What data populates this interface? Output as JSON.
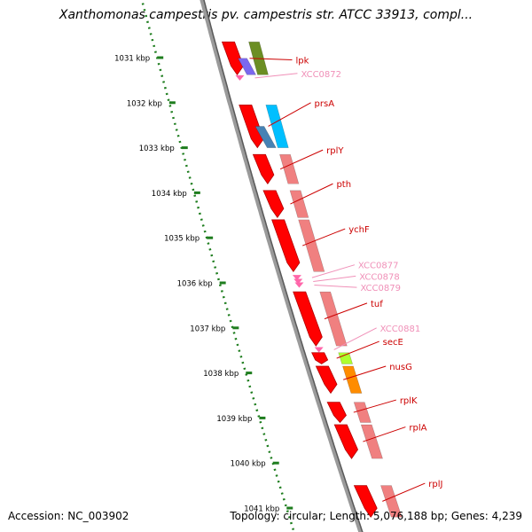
{
  "title": "Xanthomonas campestris pv. campestris str. ATCC 33913, compl...",
  "footer": {
    "accession": "Accession: NC_003902",
    "summary": "Topology: circular; Length: 5,076,188 bp; Genes: 4,239"
  },
  "ruler": {
    "unit_suffix": " kbp",
    "ticks": [
      {
        "kbp": 1031,
        "label": "1031 kbp"
      },
      {
        "kbp": 1032,
        "label": "1032 kbp"
      },
      {
        "kbp": 1033,
        "label": "1033 kbp"
      },
      {
        "kbp": 1034,
        "label": "1034 kbp"
      },
      {
        "kbp": 1035,
        "label": "1035 kbp"
      },
      {
        "kbp": 1036,
        "label": "1036 kbp"
      },
      {
        "kbp": 1037,
        "label": "1037 kbp"
      },
      {
        "kbp": 1038,
        "label": "1038 kbp"
      },
      {
        "kbp": 1039,
        "label": "1039 kbp"
      },
      {
        "kbp": 1040,
        "label": "1040 kbp"
      },
      {
        "kbp": 1041,
        "label": "1041 kbp"
      }
    ]
  },
  "colors": {
    "ruler": "#1e7d1e",
    "backbone": "#8a8a8a",
    "cds": "#ff0000",
    "cds_dark": "#b00000",
    "rna": "#ff8080",
    "named_label": "#cc0000",
    "locus_label": "#f090b8"
  },
  "genes": [
    {
      "name": "lpk",
      "start": 1030.65,
      "end": 1031.38,
      "color": "#cc0000",
      "cog_color": "#6b8e23",
      "cog2": "#7b68ee",
      "label_kbp": 1031.05,
      "style": "named"
    },
    {
      "name": "XCC0872",
      "start": 1031.42,
      "end": 1031.48,
      "label_kbp": 1031.35,
      "style": "locus"
    },
    {
      "name": "prsA",
      "start": 1032.05,
      "end": 1033.0,
      "cog_color": "#00bfff",
      "cog2": "#4682b4",
      "label_kbp": 1032.0,
      "style": "named"
    },
    {
      "name": "rplY",
      "start": 1033.15,
      "end": 1033.8,
      "cog_color": "#f08080",
      "label_kbp": 1033.05,
      "style": "named"
    },
    {
      "name": "pth",
      "start": 1033.95,
      "end": 1034.55,
      "cog_color": "#f08080",
      "label_kbp": 1033.8,
      "style": "named"
    },
    {
      "name": "ychF",
      "start": 1034.6,
      "end": 1035.75,
      "cog_color": "#f08080",
      "label_kbp": 1034.8,
      "style": "named"
    },
    {
      "name": "XCC0877",
      "start": 1035.85,
      "end": 1035.92,
      "label_kbp": 1035.6,
      "style": "locus"
    },
    {
      "name": "XCC0878",
      "start": 1035.94,
      "end": 1036.0,
      "label_kbp": 1035.85,
      "style": "locus"
    },
    {
      "name": "XCC0879",
      "start": 1036.02,
      "end": 1036.08,
      "label_kbp": 1036.1,
      "style": "locus"
    },
    {
      "name": "tuf",
      "start": 1036.2,
      "end": 1037.4,
      "cog_color": "#f08080",
      "label_kbp": 1036.45,
      "style": "named"
    },
    {
      "name": "XCC0881",
      "start": 1037.45,
      "end": 1037.52,
      "label_kbp": 1037.0,
      "style": "locus"
    },
    {
      "name": "secE",
      "start": 1037.55,
      "end": 1037.8,
      "cog_color": "#adff2f",
      "label_kbp": 1037.3,
      "style": "named"
    },
    {
      "name": "nusG",
      "start": 1037.85,
      "end": 1038.45,
      "cog_color": "#ff8c00",
      "label_kbp": 1037.85,
      "style": "named"
    },
    {
      "name": "rplK",
      "start": 1038.65,
      "end": 1039.1,
      "cog_color": "#f08080",
      "label_kbp": 1038.6,
      "style": "named"
    },
    {
      "name": "rplA",
      "start": 1039.15,
      "end": 1039.9,
      "cog_color": "#f08080",
      "label_kbp": 1039.2,
      "style": "named"
    },
    {
      "name": "rplJ",
      "start": 1040.5,
      "end": 1041.2,
      "cog_color": "#f08080",
      "label_kbp": 1040.45,
      "style": "named"
    }
  ]
}
